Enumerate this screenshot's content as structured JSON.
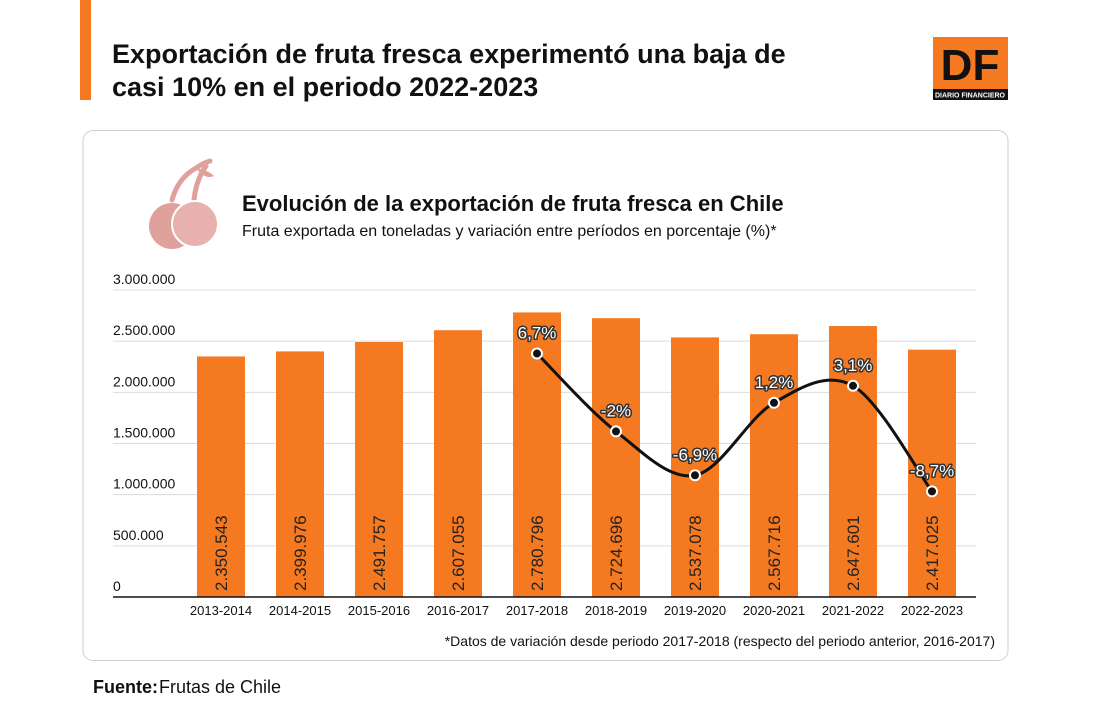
{
  "header": {
    "title": [
      "Exportación de fruta fresca experimentó una baja de",
      "casi 10% en el periodo 2022-2023"
    ]
  },
  "logo": {
    "text": "DF",
    "subtext": "DIARIO FINANCIERO"
  },
  "chart_data": {
    "type": "combo",
    "title": "Evolución de la exportación de fruta fresca en Chile",
    "subtitle": "Fruta exportada en toneladas y variación entre períodos en porcentaje (%)*",
    "categories": [
      "2013-2014",
      "2014-2015",
      "2015-2016",
      "2016-2017",
      "2017-2018",
      "2018-2019",
      "2019-2020",
      "2020-2021",
      "2021-2022",
      "2022-2023"
    ],
    "series": [
      {
        "type": "bar",
        "color": "#f47920",
        "values": [
          2350543,
          2399976,
          2491757,
          2607055,
          2780796,
          2724696,
          2537078,
          2567716,
          2647601,
          2417025
        ],
        "value_labels": [
          "2.350.543",
          "2.399.976",
          "2.491.757",
          "2.607.055",
          "2.780.796",
          "2.724.696",
          "2.537.078",
          "2.567.716",
          "2.647.601",
          "2.417.025"
        ]
      },
      {
        "type": "line",
        "axis": "y2",
        "color": "#111111",
        "values": [
          null,
          null,
          null,
          null,
          6.7,
          -2,
          -6.9,
          1.2,
          3.1,
          -8.7
        ],
        "value_labels": [
          null,
          null,
          null,
          null,
          "6,7%",
          "-2%",
          "-6,9%",
          "1,2%",
          "3,1%",
          "-8,7%"
        ]
      }
    ],
    "ylim": [
      0,
      3000000
    ],
    "yticks": [
      0,
      {
        "value": 500000,
        "label": "500.000"
      },
      {
        "value": 1000000,
        "label": "1.000.000"
      },
      {
        "value": 1500000,
        "label": "1.500.000"
      },
      {
        "value": 2000000,
        "label": "2.000.000"
      },
      {
        "value": 2500000,
        "label": "2.500.000"
      },
      {
        "value": 3000000,
        "label": "3.000.000"
      }
    ],
    "y2lim": [
      -20.5,
      13.8
    ],
    "grid": true,
    "note": "*Datos de variación desde periodo 2017-2018 (respecto del periodo anterior, 2016-2017)"
  },
  "source": {
    "label": "Fuente:",
    "text": "Frutas de Chile"
  }
}
